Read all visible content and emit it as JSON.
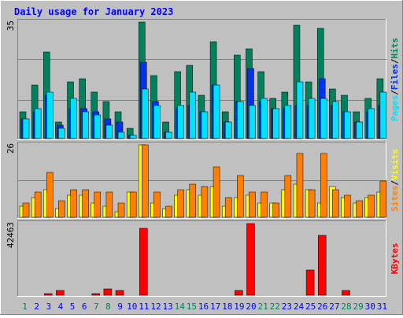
{
  "title": "Daily usage for January 2023",
  "colors": {
    "background": "#c0c0c0",
    "plot_background": "#c0c0c0",
    "border_light": "#ffffff",
    "border_dark": "#808080",
    "grid": "#808080",
    "title_text": "#0000ff",
    "axis_text": "#000000",
    "day_weekday": "#0000ff",
    "day_weekend": "#008060",
    "hits": "#00805c",
    "files": "#0030f0",
    "pages": "#00e0ff",
    "visits": "#ffff00",
    "sites": "#ff8000",
    "kbytes": "#ff0000"
  },
  "chart_data": [
    {
      "type": "bar",
      "panel": "hits-files-pages",
      "ymax": 35,
      "ymax_label": "35",
      "legend": [
        "Pages",
        "/",
        "Files",
        "/",
        "Hits"
      ],
      "categories": [
        "1",
        "2",
        "3",
        "4",
        "5",
        "6",
        "7",
        "8",
        "9",
        "10",
        "11",
        "12",
        "13",
        "14",
        "15",
        "16",
        "17",
        "18",
        "19",
        "20",
        "21",
        "22",
        "23",
        "24",
        "25",
        "26",
        "27",
        "28",
        "29",
        "30",
        "31"
      ],
      "weekend_days": [
        1,
        7,
        8,
        14,
        15,
        21,
        22,
        28,
        29
      ],
      "series": [
        {
          "name": "Hits",
          "values": [
            8,
            16,
            26,
            5,
            17,
            18,
            14,
            11,
            8,
            3,
            35,
            19,
            5,
            20,
            22,
            13,
            29,
            8,
            25,
            27,
            20,
            12,
            14,
            34,
            17,
            33,
            15,
            13,
            8,
            12,
            18
          ]
        },
        {
          "name": "Files",
          "values": [
            6,
            8,
            13,
            4,
            9,
            9,
            8,
            6,
            5,
            1,
            23,
            11,
            2,
            9,
            10,
            8,
            16,
            5,
            11,
            21,
            11,
            9,
            9,
            10,
            10,
            18,
            10,
            8,
            5,
            8,
            10
          ]
        },
        {
          "name": "Pages",
          "values": [
            6,
            9,
            14,
            3,
            12,
            8,
            7,
            4,
            2,
            1,
            15,
            10,
            2,
            10,
            14,
            8,
            16,
            5,
            11,
            10,
            12,
            9,
            10,
            17,
            12,
            12,
            11,
            8,
            5,
            9,
            14
          ]
        }
      ]
    },
    {
      "type": "bar",
      "panel": "visits-sites",
      "ymax": 26,
      "ymax_label": "26",
      "legend": [
        "Sites",
        "/",
        "Visits"
      ],
      "categories": [
        "1",
        "2",
        "3",
        "4",
        "5",
        "6",
        "7",
        "8",
        "9",
        "10",
        "11",
        "12",
        "13",
        "14",
        "15",
        "16",
        "17",
        "18",
        "19",
        "20",
        "21",
        "22",
        "23",
        "24",
        "25",
        "26",
        "27",
        "28",
        "29",
        "30",
        "31"
      ],
      "series": [
        {
          "name": "Visits",
          "values": [
            4,
            7,
            10,
            3,
            8,
            8,
            5,
            4,
            2,
            9,
            26,
            5,
            3,
            8,
            10,
            8,
            11,
            4,
            7,
            8,
            5,
            5,
            10,
            12,
            10,
            5,
            11,
            7,
            5,
            7,
            9
          ]
        },
        {
          "name": "Sites",
          "values": [
            5,
            9,
            16,
            6,
            10,
            10,
            9,
            9,
            5,
            9,
            26,
            9,
            4,
            10,
            12,
            11,
            18,
            7,
            15,
            9,
            9,
            5,
            15,
            23,
            10,
            23,
            10,
            8,
            6,
            8,
            13
          ]
        }
      ]
    },
    {
      "type": "bar",
      "panel": "kbytes",
      "ymax": 42463,
      "ymax_label": "42463",
      "legend": [
        "KBytes"
      ],
      "categories": [
        "1",
        "2",
        "3",
        "4",
        "5",
        "6",
        "7",
        "8",
        "9",
        "10",
        "11",
        "12",
        "13",
        "14",
        "15",
        "16",
        "17",
        "18",
        "19",
        "20",
        "21",
        "22",
        "23",
        "24",
        "25",
        "26",
        "27",
        "28",
        "29",
        "30",
        "31"
      ],
      "series": [
        {
          "name": "KBytes",
          "values": [
            0,
            0,
            700,
            3000,
            0,
            0,
            700,
            3500,
            2800,
            0,
            39800,
            0,
            0,
            0,
            0,
            0,
            0,
            0,
            2900,
            42463,
            0,
            0,
            0,
            0,
            15000,
            35500,
            0,
            2800,
            0,
            0,
            0
          ]
        }
      ]
    }
  ]
}
